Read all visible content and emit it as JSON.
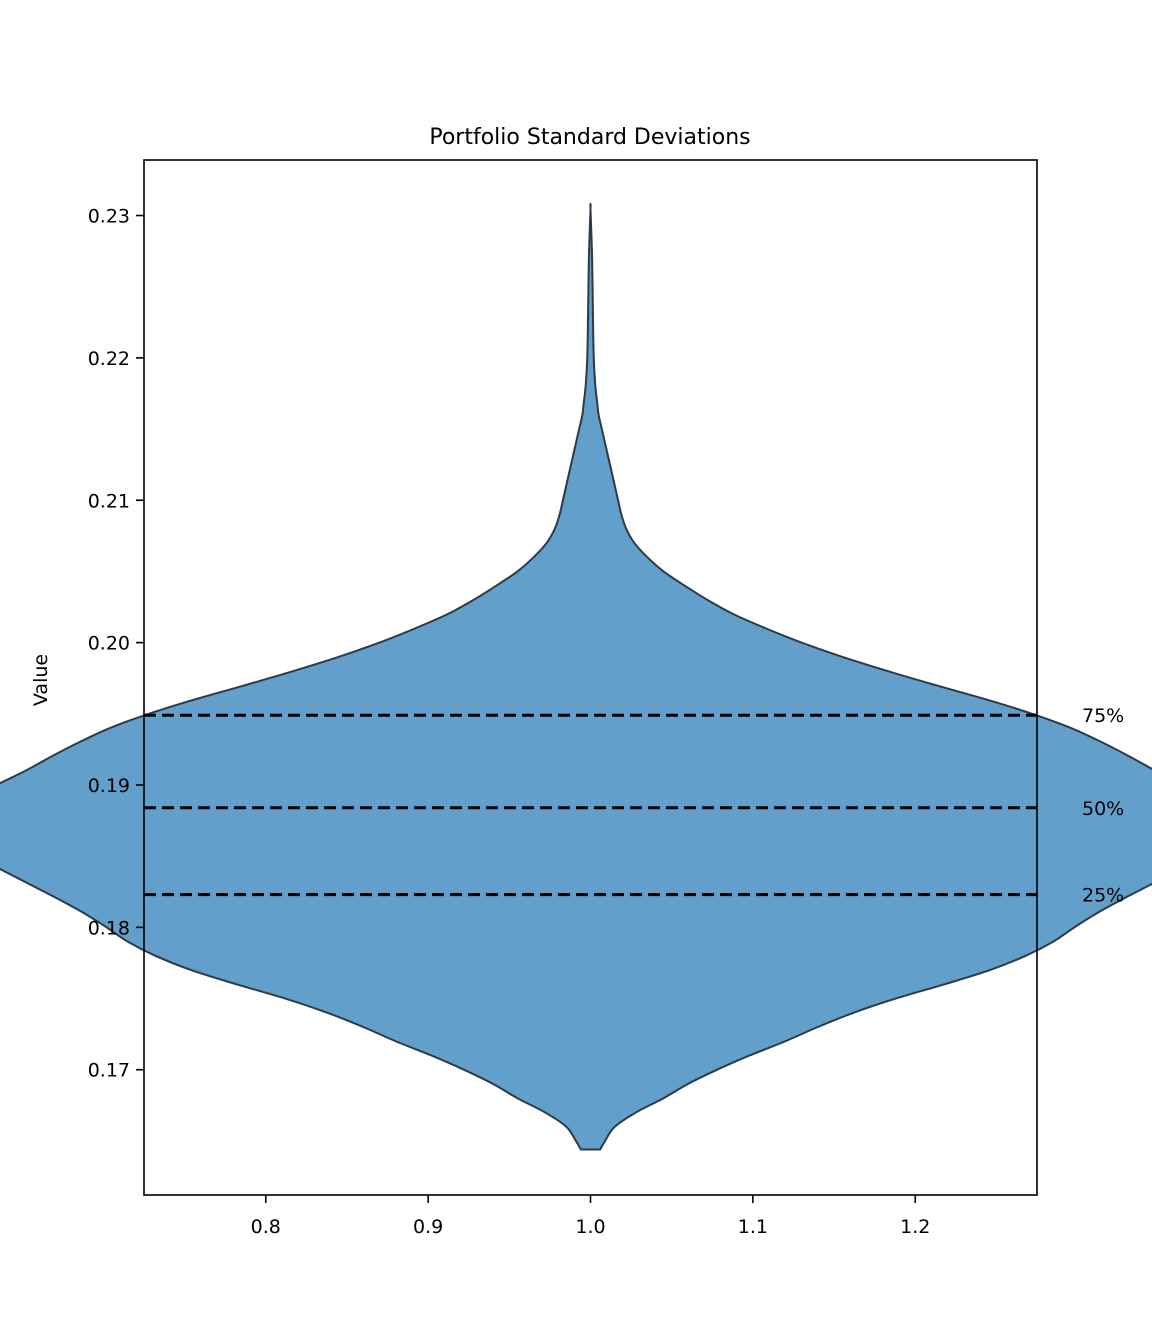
{
  "chart_data": {
    "type": "violin",
    "title": "Portfolio Standard Deviations",
    "xlabel": "",
    "ylabel": "Value",
    "xlim": [
      0.725,
      1.275
    ],
    "ylim": [
      0.1612,
      0.2339
    ],
    "x_ticks": [
      "0.8",
      "0.9",
      "1.0",
      "1.1",
      "1.2"
    ],
    "y_ticks": [
      "0.17",
      "0.18",
      "0.19",
      "0.20",
      "0.21",
      "0.22",
      "0.23"
    ],
    "grid": false,
    "violin": {
      "position": 1.0,
      "min": 0.1644,
      "max": 0.2304,
      "fill_color": "#629fcb",
      "edge_color": "#2e3a45",
      "density_profile": [
        [
          0.1644,
          0.006
        ],
        [
          0.165,
          0.009
        ],
        [
          0.166,
          0.015
        ],
        [
          0.167,
          0.028
        ],
        [
          0.168,
          0.045
        ],
        [
          0.169,
          0.06
        ],
        [
          0.17,
          0.078
        ],
        [
          0.171,
          0.098
        ],
        [
          0.172,
          0.12
        ],
        [
          0.173,
          0.14
        ],
        [
          0.174,
          0.162
        ],
        [
          0.175,
          0.188
        ],
        [
          0.176,
          0.218
        ],
        [
          0.177,
          0.246
        ],
        [
          0.178,
          0.268
        ],
        [
          0.179,
          0.285
        ],
        [
          0.18,
          0.298
        ],
        [
          0.181,
          0.312
        ],
        [
          0.182,
          0.328
        ],
        [
          0.183,
          0.345
        ],
        [
          0.184,
          0.362
        ],
        [
          0.185,
          0.378
        ],
        [
          0.186,
          0.392
        ],
        [
          0.187,
          0.4
        ],
        [
          0.188,
          0.396
        ],
        [
          0.189,
          0.384
        ],
        [
          0.19,
          0.366
        ],
        [
          0.191,
          0.348
        ],
        [
          0.192,
          0.332
        ],
        [
          0.193,
          0.315
        ],
        [
          0.194,
          0.296
        ],
        [
          0.195,
          0.272
        ],
        [
          0.196,
          0.244
        ],
        [
          0.197,
          0.213
        ],
        [
          0.198,
          0.183
        ],
        [
          0.199,
          0.155
        ],
        [
          0.2,
          0.13
        ],
        [
          0.201,
          0.108
        ],
        [
          0.202,
          0.088
        ],
        [
          0.203,
          0.072
        ],
        [
          0.204,
          0.058
        ],
        [
          0.205,
          0.045
        ],
        [
          0.206,
          0.035
        ],
        [
          0.207,
          0.027
        ],
        [
          0.208,
          0.022
        ],
        [
          0.209,
          0.019
        ],
        [
          0.21,
          0.017
        ],
        [
          0.211,
          0.015
        ],
        [
          0.212,
          0.013
        ],
        [
          0.213,
          0.011
        ],
        [
          0.214,
          0.009
        ],
        [
          0.215,
          0.007
        ],
        [
          0.216,
          0.005
        ],
        [
          0.217,
          0.004
        ],
        [
          0.218,
          0.003
        ],
        [
          0.22,
          0.002
        ],
        [
          0.223,
          0.0015
        ],
        [
          0.227,
          0.001
        ],
        [
          0.2304,
          0.0
        ]
      ]
    },
    "quantile_lines": [
      {
        "label": "75%",
        "value": 0.1949
      },
      {
        "label": "50%",
        "value": 0.1884
      },
      {
        "label": "25%",
        "value": 0.1823
      }
    ]
  }
}
